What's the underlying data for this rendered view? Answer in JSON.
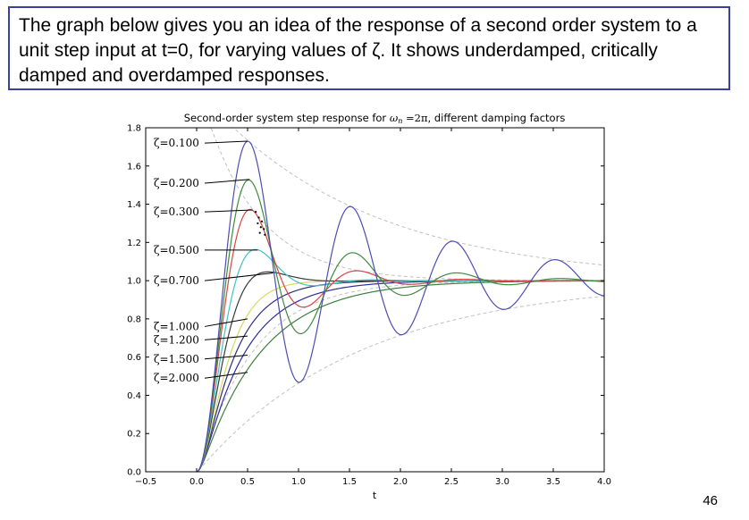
{
  "intro_text": "The graph below gives you an idea of the response of a second order system to a unit step input at t=0, for varying values of ζ. It shows underdamped, critically damped and overdamped responses.",
  "page_number": "46",
  "chart_data": {
    "type": "line",
    "title_prefix": "Second-order system step response for ",
    "title_omega": "ω",
    "title_omega_sub": "n",
    "title_mid": " =2π",
    "title_suffix": ", different damping factors",
    "xlabel": "t",
    "ylabel": "",
    "xlim": [
      -0.5,
      4.0
    ],
    "ylim": [
      0.0,
      1.8
    ],
    "xticks": [
      -0.5,
      0.0,
      0.5,
      1.0,
      1.5,
      2.0,
      2.5,
      3.0,
      3.5,
      4.0
    ],
    "xtick_labels": [
      "−0.5",
      "0.0",
      "0.5",
      "1.0",
      "1.5",
      "2.0",
      "2.5",
      "3.0",
      "3.5",
      "4.0"
    ],
    "yticks": [
      0.0,
      0.2,
      0.4,
      0.6,
      0.8,
      1.0,
      1.2,
      1.4,
      1.6,
      1.8
    ],
    "ytick_labels": [
      "0.0",
      "0.2",
      "0.4",
      "0.6",
      "0.8",
      "1.0",
      "1.2",
      "1.4",
      "1.6",
      "1.8"
    ],
    "omega_n": 6.283185307,
    "grid": false,
    "series": [
      {
        "zeta": 0.1,
        "label": "ζ=0.100",
        "color": "#4a4fb0",
        "label_y": 1.72,
        "anchor": [
          0.5,
          1.73
        ]
      },
      {
        "zeta": 0.2,
        "label": "ζ=0.200",
        "color": "#3f8a3f",
        "label_y": 1.51,
        "anchor": [
          0.52,
          1.53
        ]
      },
      {
        "zeta": 0.3,
        "label": "ζ=0.300",
        "color": "#d64545",
        "label_y": 1.36,
        "anchor": [
          0.55,
          1.37
        ]
      },
      {
        "zeta": 0.5,
        "label": "ζ=0.500",
        "color": "#3fc4c4",
        "label_y": 1.16,
        "anchor": [
          0.6,
          1.16
        ]
      },
      {
        "zeta": 0.7,
        "label": "ζ=0.700",
        "color": "#3a3a3a",
        "label_y": 1.0,
        "anchor": [
          0.75,
          1.04
        ]
      },
      {
        "zeta": 1.0,
        "label": "ζ=1.000",
        "color": "#d8d860",
        "label_y": 0.76,
        "anchor": [
          0.5,
          0.8
        ]
      },
      {
        "zeta": 1.2,
        "label": "ζ=1.200",
        "color": "#2e2e7a",
        "label_y": 0.69,
        "anchor": [
          0.5,
          0.71
        ]
      },
      {
        "zeta": 1.5,
        "label": "ζ=1.500",
        "color": "#2e2e9a",
        "label_y": 0.59,
        "anchor": [
          0.5,
          0.61
        ]
      },
      {
        "zeta": 2.0,
        "label": "ζ=2.000",
        "color": "#3f7f3f",
        "label_y": 0.49,
        "anchor": [
          0.5,
          0.52
        ]
      }
    ],
    "envelope_zetas": [
      0.1,
      0.3
    ],
    "envelope_color": "#c0c0c0"
  }
}
